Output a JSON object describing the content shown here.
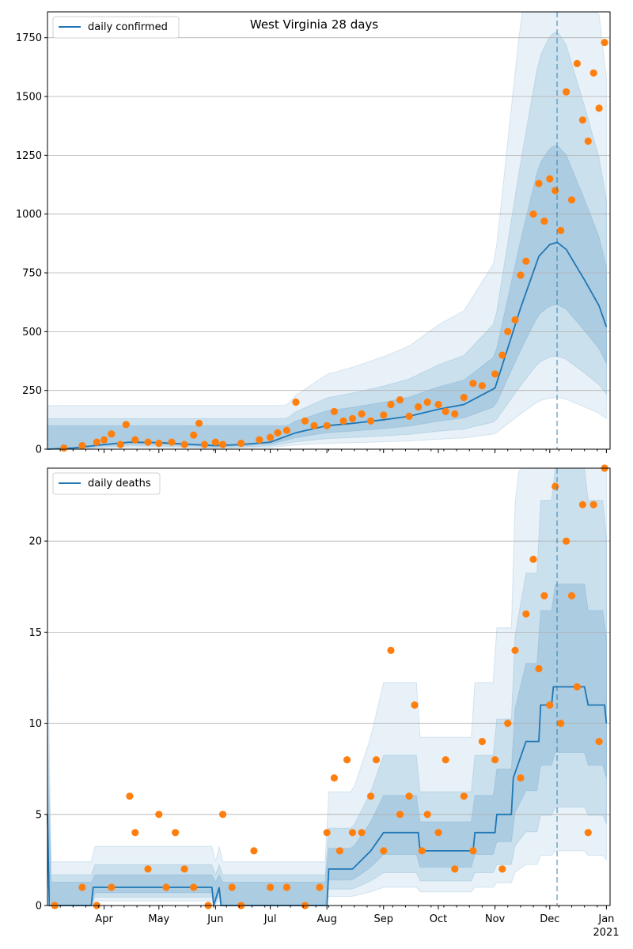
{
  "colors": {
    "line": "#1f77b4",
    "points": "#ff7f0e",
    "band": "#1f77b4",
    "grid": "#b0b0b0",
    "axis": "#000000"
  },
  "chart_data": [
    {
      "type": "line",
      "title": "West Virginia 28 days",
      "legend": [
        "daily confirmed"
      ],
      "legend_position": "top-left",
      "ylim": [
        0,
        1860
      ],
      "yticks": [
        0,
        250,
        500,
        750,
        1000,
        1250,
        1500,
        1750
      ],
      "grid": true,
      "forecast_start": "2020-12-05",
      "series": [
        {
          "name": "daily confirmed",
          "kind": "line",
          "x": [
            "2020-03-01",
            "2020-03-15",
            "2020-04-01",
            "2020-04-15",
            "2020-05-01",
            "2020-05-15",
            "2020-06-01",
            "2020-06-15",
            "2020-07-01",
            "2020-07-15",
            "2020-08-01",
            "2020-08-15",
            "2020-09-01",
            "2020-09-15",
            "2020-10-01",
            "2020-10-15",
            "2020-11-01",
            "2020-11-15",
            "2020-11-25",
            "2020-12-01",
            "2020-12-05",
            "2020-12-10",
            "2020-12-20",
            "2020-12-28",
            "2021-01-01"
          ],
          "y": [
            0,
            5,
            20,
            30,
            28,
            22,
            15,
            20,
            30,
            70,
            100,
            110,
            125,
            140,
            170,
            190,
            260,
            600,
            820,
            870,
            880,
            850,
            720,
            610,
            520
          ]
        },
        {
          "name": "observed",
          "kind": "points",
          "x": [
            "2020-03-10",
            "2020-03-20",
            "2020-03-28",
            "2020-04-01",
            "2020-04-05",
            "2020-04-10",
            "2020-04-13",
            "2020-04-18",
            "2020-04-25",
            "2020-05-01",
            "2020-05-08",
            "2020-05-15",
            "2020-05-20",
            "2020-05-23",
            "2020-05-26",
            "2020-06-01",
            "2020-06-05",
            "2020-06-15",
            "2020-06-25",
            "2020-07-01",
            "2020-07-05",
            "2020-07-10",
            "2020-07-15",
            "2020-07-20",
            "2020-07-25",
            "2020-08-01",
            "2020-08-05",
            "2020-08-10",
            "2020-08-15",
            "2020-08-20",
            "2020-08-25",
            "2020-09-01",
            "2020-09-05",
            "2020-09-10",
            "2020-09-15",
            "2020-09-20",
            "2020-09-25",
            "2020-10-01",
            "2020-10-05",
            "2020-10-10",
            "2020-10-15",
            "2020-10-20",
            "2020-10-25",
            "2020-11-01",
            "2020-11-05",
            "2020-11-08",
            "2020-11-12",
            "2020-11-15",
            "2020-11-18",
            "2020-11-22",
            "2020-11-25",
            "2020-11-28",
            "2020-12-01",
            "2020-12-04",
            "2020-12-07",
            "2020-12-10",
            "2020-12-13",
            "2020-12-16",
            "2020-12-19",
            "2020-12-22",
            "2020-12-25",
            "2020-12-28",
            "2020-12-31"
          ],
          "y": [
            5,
            15,
            30,
            40,
            65,
            20,
            105,
            40,
            30,
            25,
            30,
            20,
            60,
            110,
            20,
            30,
            20,
            25,
            40,
            50,
            70,
            80,
            200,
            120,
            100,
            100,
            160,
            120,
            130,
            150,
            120,
            145,
            190,
            210,
            140,
            180,
            200,
            190,
            160,
            150,
            220,
            280,
            270,
            320,
            400,
            500,
            550,
            740,
            800,
            1000,
            1130,
            970,
            1150,
            1100,
            930,
            1520,
            1060,
            1640,
            1400,
            1310,
            1600,
            1450,
            1730
          ]
        }
      ]
    },
    {
      "type": "line",
      "title": "",
      "legend": [
        "daily deaths"
      ],
      "legend_position": "top-left",
      "ylim": [
        0,
        24
      ],
      "yticks": [
        0,
        5,
        10,
        15,
        20
      ],
      "grid": true,
      "xlim": [
        "2020-03-01",
        "2021-01-03"
      ],
      "xticks": [
        "Apr",
        "May",
        "Jun",
        "Jul",
        "Aug",
        "Sep",
        "Oct",
        "Nov",
        "Dec",
        "Jan"
      ],
      "xtick_dates": [
        "2020-04-01",
        "2020-05-01",
        "2020-06-01",
        "2020-07-01",
        "2020-08-01",
        "2020-09-01",
        "2020-10-01",
        "2020-11-01",
        "2020-12-01",
        "2021-01-01"
      ],
      "year_label": "2021",
      "forecast_start": "2020-12-05",
      "series": [
        {
          "name": "daily deaths",
          "kind": "line",
          "x": [
            "2020-03-01",
            "2020-03-02",
            "2020-03-25",
            "2020-03-26",
            "2020-05-30",
            "2020-05-31",
            "2020-06-03",
            "2020-06-04",
            "2020-07-15",
            "2020-08-01",
            "2020-08-02",
            "2020-08-15",
            "2020-08-25",
            "2020-09-01",
            "2020-09-20",
            "2020-09-21",
            "2020-10-20",
            "2020-10-21",
            "2020-11-01",
            "2020-11-02",
            "2020-11-10",
            "2020-11-11",
            "2020-11-18",
            "2020-11-25",
            "2020-11-26",
            "2020-12-02",
            "2020-12-03",
            "2020-12-20",
            "2020-12-22",
            "2020-12-31",
            "2021-01-01"
          ],
          "y": [
            5,
            0,
            0,
            1,
            1,
            0,
            1,
            0,
            0,
            0,
            2,
            2,
            3,
            4,
            4,
            3,
            3,
            4,
            4,
            5,
            5,
            7,
            9,
            9,
            11,
            11,
            12,
            12,
            11,
            11,
            10
          ]
        },
        {
          "name": "observed",
          "kind": "points",
          "x": [
            "2020-03-05",
            "2020-03-20",
            "2020-03-28",
            "2020-04-05",
            "2020-04-15",
            "2020-04-18",
            "2020-04-25",
            "2020-05-01",
            "2020-05-05",
            "2020-05-10",
            "2020-05-15",
            "2020-05-20",
            "2020-05-28",
            "2020-06-05",
            "2020-06-10",
            "2020-06-15",
            "2020-06-22",
            "2020-07-01",
            "2020-07-10",
            "2020-07-20",
            "2020-07-28",
            "2020-08-01",
            "2020-08-05",
            "2020-08-08",
            "2020-08-12",
            "2020-08-15",
            "2020-08-20",
            "2020-08-25",
            "2020-08-28",
            "2020-09-01",
            "2020-09-05",
            "2020-09-10",
            "2020-09-15",
            "2020-09-18",
            "2020-09-22",
            "2020-09-25",
            "2020-10-01",
            "2020-10-05",
            "2020-10-10",
            "2020-10-15",
            "2020-10-20",
            "2020-10-25",
            "2020-11-01",
            "2020-11-05",
            "2020-11-08",
            "2020-11-12",
            "2020-11-15",
            "2020-11-18",
            "2020-11-22",
            "2020-11-25",
            "2020-11-28",
            "2020-12-01",
            "2020-12-04",
            "2020-12-07",
            "2020-12-10",
            "2020-12-13",
            "2020-12-16",
            "2020-12-19",
            "2020-12-22",
            "2020-12-25",
            "2020-12-28",
            "2020-12-31"
          ],
          "y": [
            0,
            1,
            0,
            1,
            6,
            4,
            2,
            5,
            1,
            4,
            2,
            1,
            0,
            5,
            1,
            0,
            3,
            1,
            1,
            0,
            1,
            4,
            7,
            3,
            8,
            4,
            4,
            6,
            8,
            3,
            14,
            5,
            6,
            11,
            3,
            5,
            4,
            8,
            2,
            6,
            3,
            9,
            8,
            2,
            10,
            14,
            7,
            16,
            19,
            13,
            17,
            11,
            23,
            10,
            20,
            17,
            12,
            22,
            4,
            22,
            9,
            24
          ]
        }
      ]
    }
  ]
}
